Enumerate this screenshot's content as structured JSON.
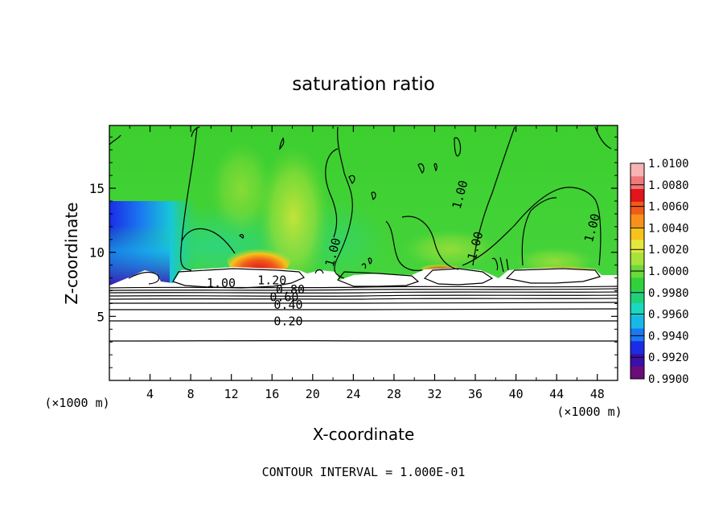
{
  "chart_data": {
    "type": "heatmap",
    "title": "saturation ratio",
    "xlabel": "X-coordinate",
    "ylabel": "Z-coordinate",
    "x_unit_label": "(×1000 m)",
    "x_unit_label_right": "(×1000 m)",
    "footer": "CONTOUR INTERVAL = 1.000E-01",
    "xlim": [
      0,
      50
    ],
    "ylim": [
      0,
      19.9
    ],
    "x_ticks": [
      4,
      8,
      12,
      16,
      20,
      24,
      28,
      32,
      36,
      40,
      44,
      48
    ],
    "y_ticks": [
      5,
      10,
      15
    ],
    "colorbar": {
      "min": 0.99,
      "max": 1.01,
      "ticks": [
        "1.0100",
        "1.0080",
        "1.0060",
        "1.0040",
        "1.0020",
        "1.0000",
        "0.9980",
        "0.9960",
        "0.9940",
        "0.9920",
        "0.9900"
      ],
      "colors": [
        "#6a0d7a",
        "#3c0fa8",
        "#1a2ce6",
        "#1a78f0",
        "#18b8e8",
        "#1ad8c0",
        "#22d07a",
        "#30d23a",
        "#6cd83a",
        "#a8e23a",
        "#e4e83a",
        "#f8c21a",
        "#f8901a",
        "#f05a1a",
        "#e0141a",
        "#f07878",
        "#f8b4b4"
      ]
    },
    "contour_labels": [
      {
        "text": "1.00",
        "x": 11.0,
        "z": 7.6
      },
      {
        "text": "1.20",
        "x": 16.0,
        "z": 7.8
      },
      {
        "text": "0.80",
        "x": 17.8,
        "z": 7.1
      },
      {
        "text": "0.60",
        "x": 17.2,
        "z": 6.5
      },
      {
        "text": "0.40",
        "x": 17.6,
        "z": 5.9
      },
      {
        "text": "0.20",
        "x": 17.6,
        "z": 4.6
      },
      {
        "text": "1.00",
        "x": 22.0,
        "z": 10.0
      },
      {
        "text": "1.00",
        "x": 34.5,
        "z": 14.5
      },
      {
        "text": "1.00",
        "x": 36.0,
        "z": 10.5
      },
      {
        "text": "1.00",
        "x": 47.5,
        "z": 11.9
      }
    ],
    "field_description_regions": [
      {
        "x_range": [
          0,
          5
        ],
        "z_range": [
          7.5,
          12
        ],
        "value": 0.9925
      },
      {
        "x_range": [
          12,
          17
        ],
        "z_range": [
          8.8,
          10.5
        ],
        "value": 1.006
      },
      {
        "x_range": [
          5,
          50
        ],
        "z_range": [
          12,
          19.9
        ],
        "value": 1.0
      },
      {
        "x_range": [
          17,
          22
        ],
        "z_range": [
          9,
          19.9
        ],
        "value": 1.002
      }
    ]
  }
}
